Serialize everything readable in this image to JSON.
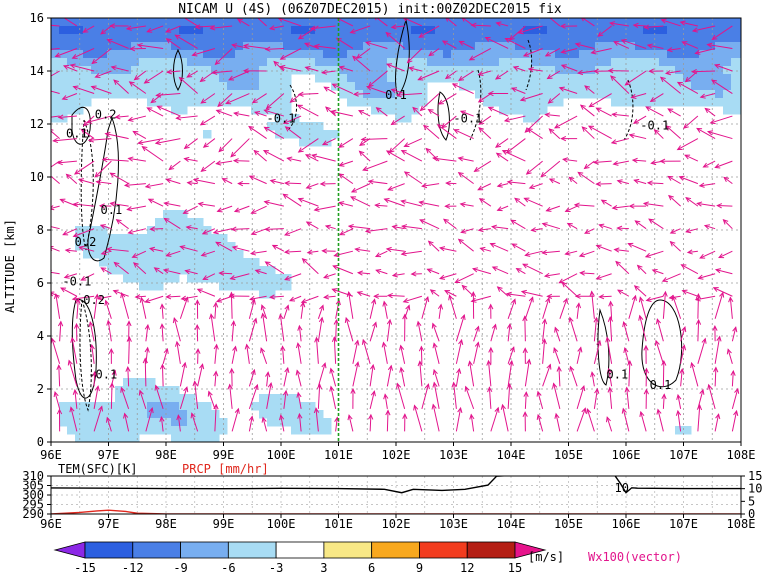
{
  "header": {
    "title": "NICAM U (4S) (06Z07DEC2015) init:00Z02DEC2015 fix"
  },
  "chart_data": [
    {
      "type": "heatmap",
      "title": "NICAM U (4S) (06Z07DEC2015) init:00Z02DEC2015 fix",
      "xlabel": "",
      "ylabel": "ALTITUDE [km]",
      "x_ticks": [
        "96E",
        "97E",
        "98E",
        "99E",
        "100E",
        "101E",
        "102E",
        "103E",
        "104E",
        "105E",
        "106E",
        "107E",
        "108E"
      ],
      "y_ticks": [
        "0",
        "2",
        "4",
        "6",
        "8",
        "10",
        "12",
        "14",
        "16"
      ],
      "xlim": [
        96,
        108
      ],
      "ylim": [
        0,
        16
      ],
      "grid": true,
      "marker_line_lon": 101.0,
      "contour_labels": [
        {
          "text": "0.2",
          "lon": 96.95,
          "alt": 12.2
        },
        {
          "text": "0.1",
          "lon": 96.45,
          "alt": 11.5
        },
        {
          "text": "0.1",
          "lon": 97.05,
          "alt": 8.6
        },
        {
          "text": "0.2",
          "lon": 96.6,
          "alt": 7.4
        },
        {
          "text": "-0.1",
          "lon": 96.45,
          "alt": 5.9
        },
        {
          "text": "0.2",
          "lon": 96.75,
          "alt": 5.2
        },
        {
          "text": "-0.1",
          "lon": 96.9,
          "alt": 2.4
        },
        {
          "text": "0.1",
          "lon": 102.0,
          "alt": 12.95
        },
        {
          "text": "-0.1",
          "lon": 100.0,
          "alt": 12.05
        },
        {
          "text": "-0.1",
          "lon": 103.25,
          "alt": 12.05
        },
        {
          "text": "-0.1",
          "lon": 106.5,
          "alt": 11.8
        },
        {
          "text": "0.1",
          "lon": 105.85,
          "alt": 2.4
        },
        {
          "text": "0.1",
          "lon": 106.6,
          "alt": 2.0
        }
      ],
      "colorbar": {
        "levels": [
          -15,
          -12,
          -9,
          -6,
          -3,
          3,
          6,
          9,
          12,
          15
        ],
        "colors": [
          "#8c28e6",
          "#2c5fe0",
          "#4a7fe6",
          "#78aef0",
          "#a8dcf4",
          "#ffffff",
          "#f8e886",
          "#f8a81e",
          "#f23c1e",
          "#b41e14",
          "#e6148c"
        ],
        "unit": "[m/s]",
        "vector_label": "Wx100(vector)"
      }
    },
    {
      "type": "line",
      "title": "",
      "xlim": [
        96,
        108
      ],
      "x_ticks": [
        "96E",
        "97E",
        "98E",
        "99E",
        "100E",
        "101E",
        "102E",
        "103E",
        "104E",
        "105E",
        "106E",
        "107E",
        "108E"
      ],
      "left_axis": {
        "label": "TEM(SFC)[K]",
        "ticks": [
          "290",
          "295",
          "300",
          "305",
          "310"
        ],
        "ylim": [
          290,
          310
        ]
      },
      "right_axis": {
        "label": "PRCP [mm/hr]",
        "ticks": [
          "0",
          "5",
          "10",
          "15"
        ],
        "ylim": [
          0,
          15
        ]
      },
      "annotation": "10",
      "series": [
        {
          "name": "TEM(SFC)[K]",
          "color": "#000000",
          "x": [
            96.0,
            97.0,
            98.0,
            99.0,
            100.0,
            101.0,
            101.8,
            102.1,
            102.3,
            102.8,
            103.2,
            103.6,
            103.75,
            104.0,
            105.0,
            105.8,
            105.9,
            106.0,
            106.1,
            106.2,
            107.0,
            108.0
          ],
          "y": [
            303.7,
            303.6,
            303.4,
            303.3,
            303.5,
            303.4,
            303.0,
            301.2,
            303.0,
            302.4,
            303.0,
            305.2,
            309.9,
            310.3,
            310.4,
            310.5,
            306.2,
            301.2,
            303.8,
            303.6,
            303.4,
            303.4
          ]
        },
        {
          "name": "PRCP [mm/hr]",
          "color": "#e0281e",
          "x": [
            96.0,
            96.5,
            96.8,
            97.0,
            97.3,
            97.5,
            98.0,
            108.0
          ],
          "y": [
            0.0,
            0.6,
            1.2,
            1.5,
            1.0,
            0.3,
            0.0,
            0.0
          ]
        }
      ]
    }
  ]
}
